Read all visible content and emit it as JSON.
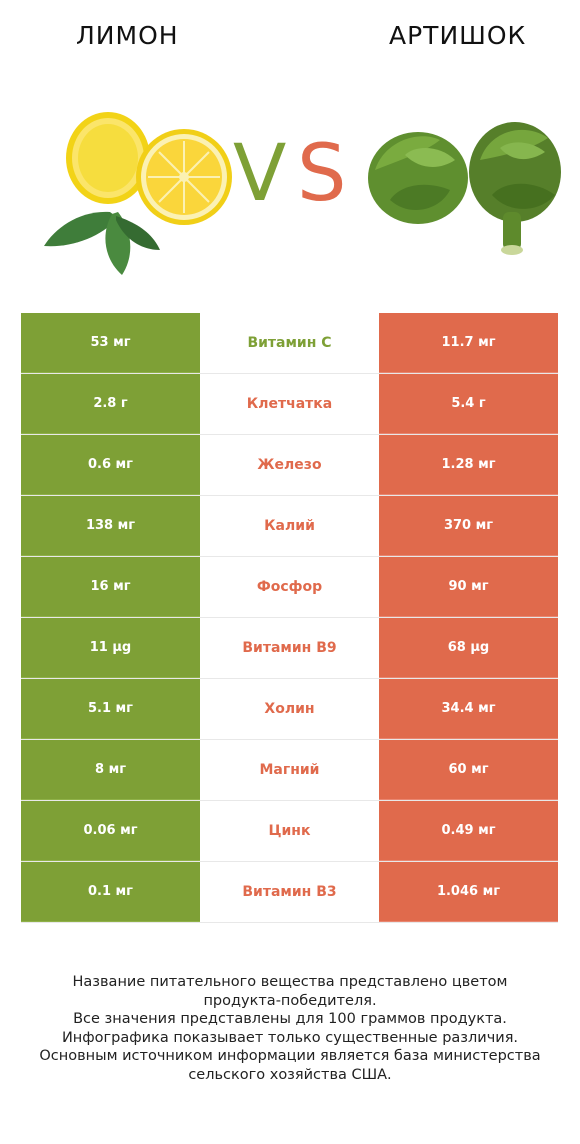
{
  "header": {
    "left_title": "ЛИМОН",
    "right_title": "АРТИШОК",
    "vs_v": "V",
    "vs_s": "S"
  },
  "colors": {
    "winner_left": "#7ea036",
    "winner_right": "#e06a4c"
  },
  "rows": [
    {
      "left": "53 мг",
      "nutrient": "Витамин C",
      "right": "11.7 мг",
      "winner": "left"
    },
    {
      "left": "2.8 г",
      "nutrient": "Клетчатка",
      "right": "5.4 г",
      "winner": "right"
    },
    {
      "left": "0.6 мг",
      "nutrient": "Железо",
      "right": "1.28 мг",
      "winner": "right"
    },
    {
      "left": "138 мг",
      "nutrient": "Калий",
      "right": "370 мг",
      "winner": "right"
    },
    {
      "left": "16 мг",
      "nutrient": "Фосфор",
      "right": "90 мг",
      "winner": "right"
    },
    {
      "left": "11 µg",
      "nutrient": "Витамин B9",
      "right": "68 µg",
      "winner": "right"
    },
    {
      "left": "5.1 мг",
      "nutrient": "Холин",
      "right": "34.4 мг",
      "winner": "right"
    },
    {
      "left": "8 мг",
      "nutrient": "Магний",
      "right": "60 мг",
      "winner": "right"
    },
    {
      "left": "0.06 мг",
      "nutrient": "Цинк",
      "right": "0.49 мг",
      "winner": "right"
    },
    {
      "left": "0.1 мг",
      "nutrient": "Витамин B3",
      "right": "1.046 мг",
      "winner": "right"
    }
  ],
  "footer": {
    "lines": [
      "Название питательного вещества представлено цветом",
      "продукта-победителя.",
      "Все значения представлены для 100 граммов продукта.",
      "Инфографика показывает только существенные различия.",
      "Основным источником информации является база министерства",
      "сельского хозяйства США."
    ]
  }
}
